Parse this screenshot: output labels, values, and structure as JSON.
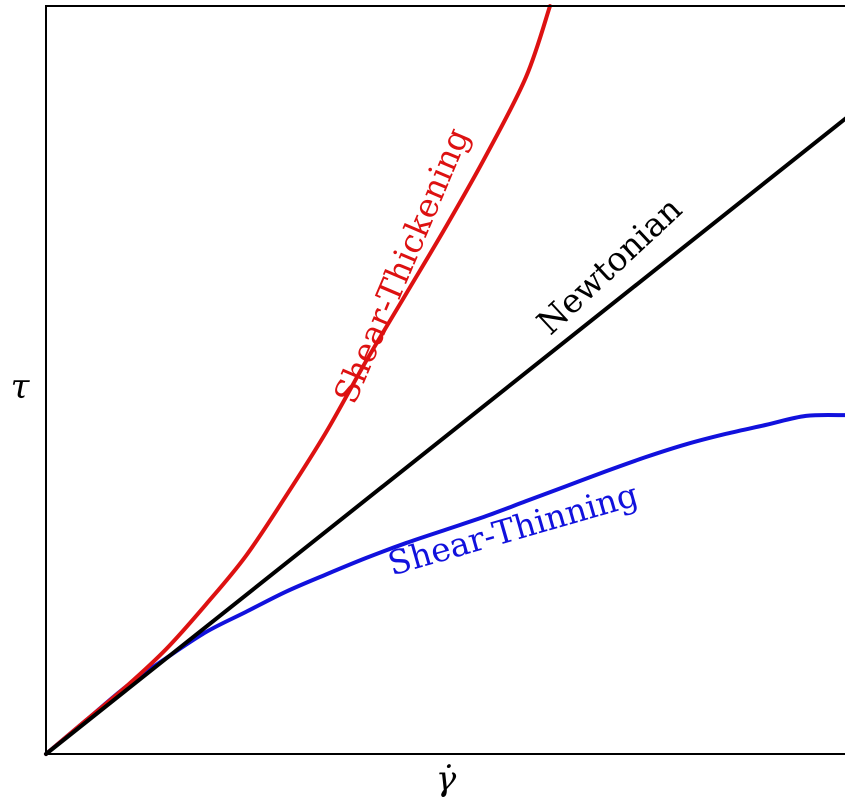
{
  "chart_data": {
    "type": "line",
    "xlabel": "γ̇",
    "ylabel": "τ",
    "xlim": [
      0,
      1
    ],
    "ylim": [
      0,
      1
    ],
    "grid": false,
    "legend": "none",
    "series": [
      {
        "name": "Newtonian",
        "color": "#000000",
        "x": [
          0.0,
          1.0
        ],
        "y": [
          0.0,
          0.85
        ]
      },
      {
        "name": "Shear-Thickening",
        "color": "#dd1111",
        "x": [
          0.0,
          0.05,
          0.1,
          0.15,
          0.2,
          0.25,
          0.3,
          0.35,
          0.4,
          0.45,
          0.5,
          0.55,
          0.6,
          0.63
        ],
        "y": [
          0.0,
          0.045,
          0.09,
          0.14,
          0.2,
          0.265,
          0.345,
          0.43,
          0.525,
          0.615,
          0.705,
          0.8,
          0.905,
          1.0
        ]
      },
      {
        "name": "Shear-Thinning",
        "color": "#1111dd",
        "x": [
          0.0,
          0.05,
          0.1,
          0.15,
          0.2,
          0.25,
          0.3,
          0.35,
          0.4,
          0.45,
          0.5,
          0.55,
          0.6,
          0.65,
          0.7,
          0.75,
          0.8,
          0.85,
          0.9,
          0.95,
          1.0
        ],
        "y": [
          0.0,
          0.045,
          0.09,
          0.128,
          0.163,
          0.19,
          0.217,
          0.24,
          0.262,
          0.282,
          0.3,
          0.318,
          0.338,
          0.358,
          0.378,
          0.397,
          0.414,
          0.428,
          0.44,
          0.452,
          0.453
        ]
      }
    ]
  }
}
